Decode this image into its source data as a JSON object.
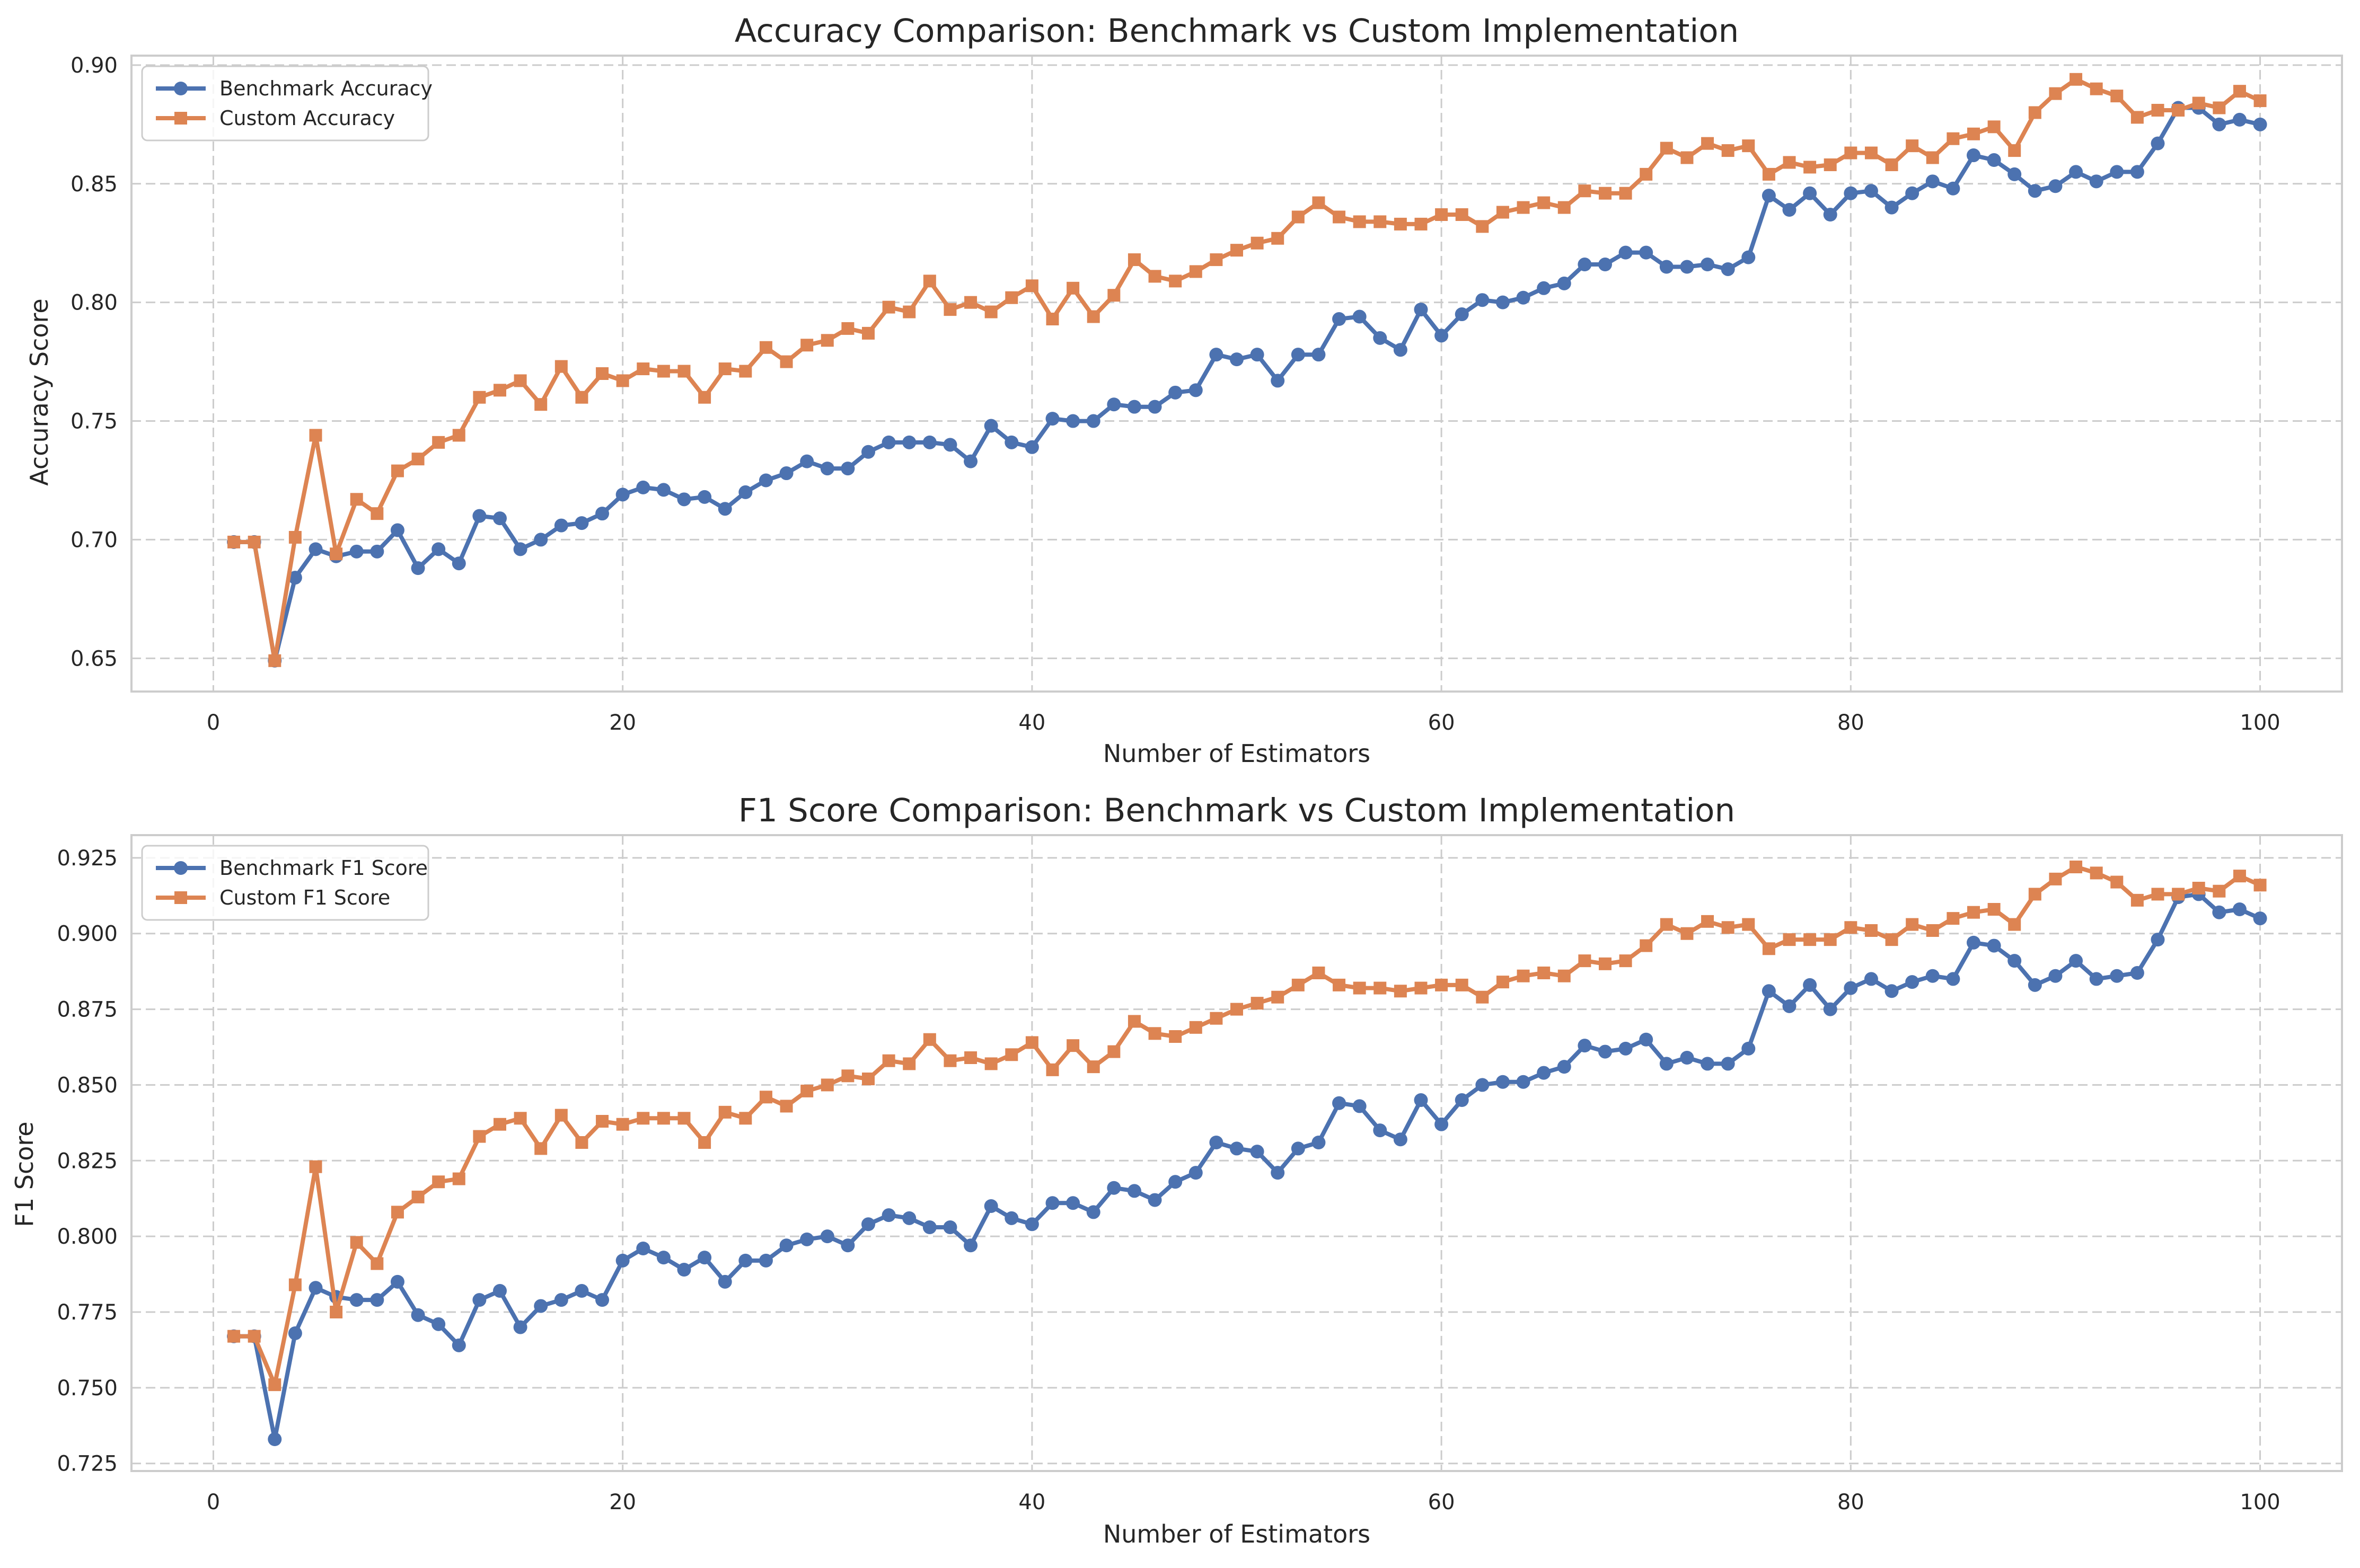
{
  "chart_data": [
    {
      "type": "line",
      "title": "Accuracy Comparison: Benchmark vs Custom Implementation",
      "xlabel": "Number of Estimators",
      "ylabel": "Accuracy Score",
      "xlim": [
        -4,
        104
      ],
      "ylim": [
        0.636,
        0.904
      ],
      "xticks": [
        0,
        20,
        40,
        60,
        80,
        100
      ],
      "xtick_labels": [
        "0",
        "20",
        "40",
        "60",
        "80",
        "100"
      ],
      "yticks": [
        0.65,
        0.7,
        0.75,
        0.8,
        0.85,
        0.9
      ],
      "ytick_labels": [
        "0.65",
        "0.70",
        "0.75",
        "0.80",
        "0.85",
        "0.90"
      ],
      "grid": true,
      "legend_position": "top-left",
      "x_start": 1,
      "series": [
        {
          "name": "Benchmark Accuracy",
          "color": "#4c72b0",
          "marker": "circle",
          "values": [
            0.699,
            0.699,
            0.649,
            0.684,
            0.696,
            0.693,
            0.695,
            0.695,
            0.704,
            0.688,
            0.696,
            0.69,
            0.71,
            0.709,
            0.696,
            0.7,
            0.706,
            0.707,
            0.711,
            0.719,
            0.722,
            0.721,
            0.717,
            0.718,
            0.713,
            0.72,
            0.725,
            0.728,
            0.733,
            0.73,
            0.73,
            0.737,
            0.741,
            0.741,
            0.741,
            0.74,
            0.733,
            0.748,
            0.741,
            0.739,
            0.751,
            0.75,
            0.75,
            0.757,
            0.756,
            0.756,
            0.762,
            0.763,
            0.778,
            0.776,
            0.778,
            0.767,
            0.778,
            0.778,
            0.793,
            0.794,
            0.785,
            0.78,
            0.797,
            0.786,
            0.795,
            0.801,
            0.8,
            0.802,
            0.806,
            0.808,
            0.816,
            0.816,
            0.821,
            0.821,
            0.815,
            0.815,
            0.816,
            0.814,
            0.819,
            0.845,
            0.839,
            0.846,
            0.837,
            0.846,
            0.847,
            0.84,
            0.846,
            0.851,
            0.848,
            0.862,
            0.86,
            0.854,
            0.847,
            0.849,
            0.855,
            0.851,
            0.855,
            0.855,
            0.867,
            0.882,
            0.882,
            0.875,
            0.877,
            0.875
          ]
        },
        {
          "name": "Custom Accuracy",
          "color": "#dd8452",
          "marker": "square",
          "values": [
            0.699,
            0.699,
            0.649,
            0.701,
            0.744,
            0.694,
            0.717,
            0.711,
            0.729,
            0.734,
            0.741,
            0.744,
            0.76,
            0.763,
            0.767,
            0.757,
            0.773,
            0.76,
            0.77,
            0.767,
            0.772,
            0.771,
            0.771,
            0.76,
            0.772,
            0.771,
            0.781,
            0.775,
            0.782,
            0.784,
            0.789,
            0.787,
            0.798,
            0.796,
            0.809,
            0.797,
            0.8,
            0.796,
            0.802,
            0.807,
            0.793,
            0.806,
            0.794,
            0.803,
            0.818,
            0.811,
            0.809,
            0.813,
            0.818,
            0.822,
            0.825,
            0.827,
            0.836,
            0.842,
            0.836,
            0.834,
            0.834,
            0.833,
            0.833,
            0.837,
            0.837,
            0.832,
            0.838,
            0.84,
            0.842,
            0.84,
            0.847,
            0.846,
            0.846,
            0.854,
            0.865,
            0.861,
            0.867,
            0.864,
            0.866,
            0.854,
            0.859,
            0.857,
            0.858,
            0.863,
            0.863,
            0.858,
            0.866,
            0.861,
            0.869,
            0.871,
            0.874,
            0.864,
            0.88,
            0.888,
            0.894,
            0.89,
            0.887,
            0.878,
            0.881,
            0.881,
            0.884,
            0.882,
            0.889,
            0.885
          ]
        }
      ]
    },
    {
      "type": "line",
      "title": "F1 Score Comparison: Benchmark vs Custom Implementation",
      "xlabel": "Number of Estimators",
      "ylabel": "F1 Score",
      "xlim": [
        -4,
        104
      ],
      "ylim": [
        0.7225,
        0.9325
      ],
      "xticks": [
        0,
        20,
        40,
        60,
        80,
        100
      ],
      "xtick_labels": [
        "0",
        "20",
        "40",
        "60",
        "80",
        "100"
      ],
      "yticks": [
        0.725,
        0.75,
        0.775,
        0.8,
        0.825,
        0.85,
        0.875,
        0.9,
        0.925
      ],
      "ytick_labels": [
        "0.725",
        "0.750",
        "0.775",
        "0.800",
        "0.825",
        "0.850",
        "0.875",
        "0.900",
        "0.925"
      ],
      "grid": true,
      "legend_position": "top-left",
      "x_start": 1,
      "series": [
        {
          "name": "Benchmark F1 Score",
          "color": "#4c72b0",
          "marker": "circle",
          "values": [
            0.767,
            0.767,
            0.733,
            0.768,
            0.783,
            0.78,
            0.779,
            0.779,
            0.785,
            0.774,
            0.771,
            0.764,
            0.779,
            0.782,
            0.77,
            0.777,
            0.779,
            0.782,
            0.779,
            0.792,
            0.796,
            0.793,
            0.789,
            0.793,
            0.785,
            0.792,
            0.792,
            0.797,
            0.799,
            0.8,
            0.797,
            0.804,
            0.807,
            0.806,
            0.803,
            0.803,
            0.797,
            0.81,
            0.806,
            0.804,
            0.811,
            0.811,
            0.808,
            0.816,
            0.815,
            0.812,
            0.818,
            0.821,
            0.831,
            0.829,
            0.828,
            0.821,
            0.829,
            0.831,
            0.844,
            0.843,
            0.835,
            0.832,
            0.845,
            0.837,
            0.845,
            0.85,
            0.851,
            0.851,
            0.854,
            0.856,
            0.863,
            0.861,
            0.862,
            0.865,
            0.857,
            0.859,
            0.857,
            0.857,
            0.862,
            0.881,
            0.876,
            0.883,
            0.875,
            0.882,
            0.885,
            0.881,
            0.884,
            0.886,
            0.885,
            0.897,
            0.896,
            0.891,
            0.883,
            0.886,
            0.891,
            0.885,
            0.886,
            0.887,
            0.898,
            0.912,
            0.913,
            0.907,
            0.908,
            0.905
          ]
        },
        {
          "name": "Custom F1 Score",
          "color": "#dd8452",
          "marker": "square",
          "values": [
            0.767,
            0.767,
            0.751,
            0.784,
            0.823,
            0.775,
            0.798,
            0.791,
            0.808,
            0.813,
            0.818,
            0.819,
            0.833,
            0.837,
            0.839,
            0.829,
            0.84,
            0.831,
            0.838,
            0.837,
            0.839,
            0.839,
            0.839,
            0.831,
            0.841,
            0.839,
            0.846,
            0.843,
            0.848,
            0.85,
            0.853,
            0.852,
            0.858,
            0.857,
            0.865,
            0.858,
            0.859,
            0.857,
            0.86,
            0.864,
            0.855,
            0.863,
            0.856,
            0.861,
            0.871,
            0.867,
            0.866,
            0.869,
            0.872,
            0.875,
            0.877,
            0.879,
            0.883,
            0.887,
            0.883,
            0.882,
            0.882,
            0.881,
            0.882,
            0.883,
            0.883,
            0.879,
            0.884,
            0.886,
            0.887,
            0.886,
            0.891,
            0.89,
            0.891,
            0.896,
            0.903,
            0.9,
            0.904,
            0.902,
            0.903,
            0.895,
            0.898,
            0.898,
            0.898,
            0.902,
            0.901,
            0.898,
            0.903,
            0.901,
            0.905,
            0.907,
            0.908,
            0.903,
            0.913,
            0.918,
            0.922,
            0.92,
            0.917,
            0.911,
            0.913,
            0.913,
            0.915,
            0.914,
            0.919,
            0.916
          ]
        }
      ]
    }
  ]
}
